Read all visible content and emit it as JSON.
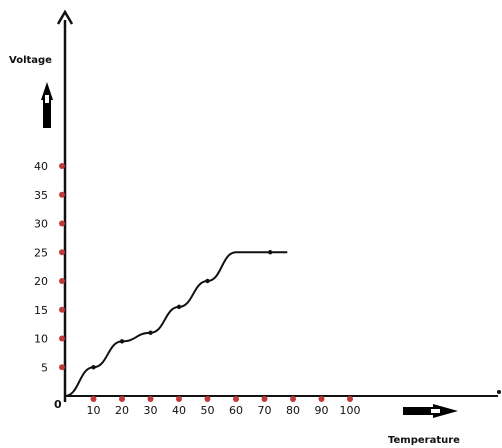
{
  "chart_data": {
    "type": "line",
    "xlabel": "Temperature",
    "ylabel": "Voltage",
    "origin_label": "0",
    "x_ticks": [
      10,
      20,
      30,
      40,
      50,
      60,
      70,
      80,
      90,
      100
    ],
    "y_ticks": [
      5,
      10,
      15,
      20,
      25,
      30,
      35,
      40
    ],
    "xlim": [
      0,
      100
    ],
    "ylim": [
      0,
      40
    ],
    "grid": false,
    "tick_marker_color": "#c0393b",
    "line_color": "#111111",
    "series": [
      {
        "x": [
          0,
          10,
          20,
          30,
          40,
          50,
          60,
          70,
          78
        ],
        "y": [
          0,
          5,
          9.5,
          11,
          15.5,
          20,
          25,
          25,
          25
        ]
      }
    ],
    "markers": {
      "x": [
        10,
        20,
        30,
        40,
        50,
        72
      ],
      "y": [
        5,
        9.5,
        11,
        15.5,
        20,
        25
      ]
    }
  }
}
